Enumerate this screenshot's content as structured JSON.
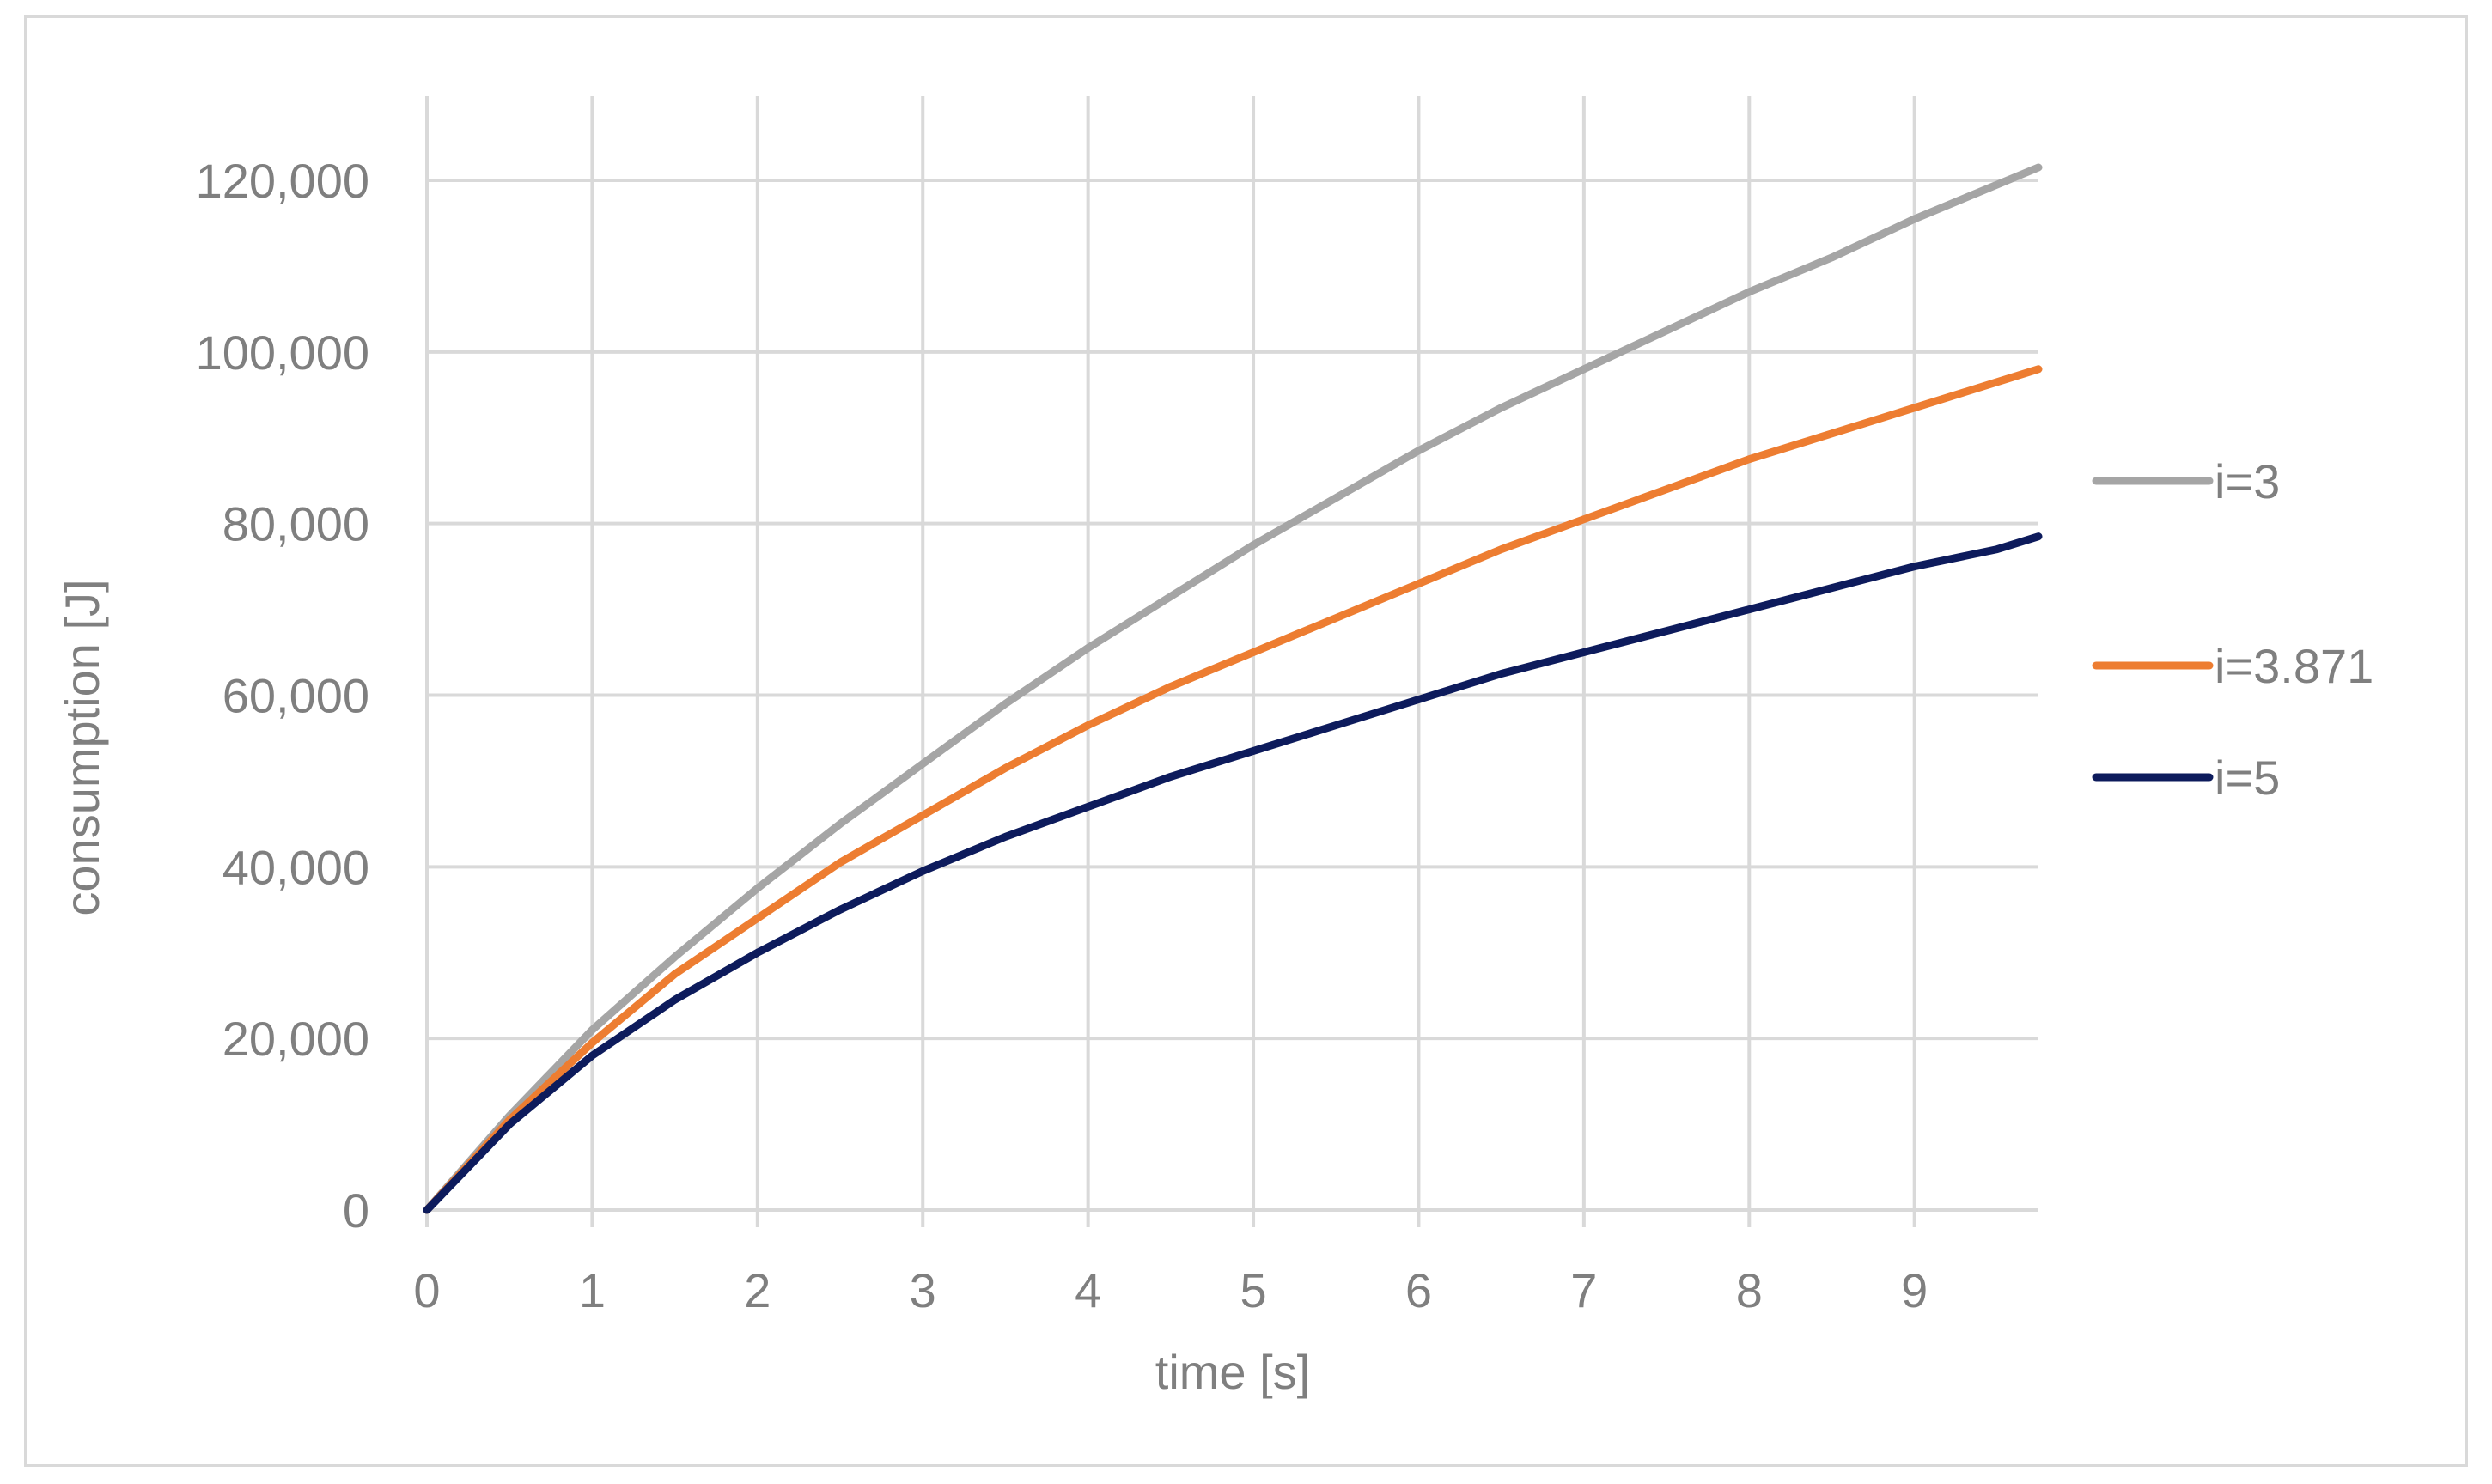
{
  "chart_data": {
    "type": "line",
    "title": "",
    "xlabel": "time [s]",
    "ylabel": "consumption [J]",
    "xlim": [
      0,
      9.75
    ],
    "ylim": [
      0,
      120000
    ],
    "x_ticks": [
      0,
      1,
      2,
      3,
      4,
      5,
      6,
      7,
      8,
      9
    ],
    "x_tick_labels": [
      "0",
      "1",
      "2",
      "3",
      "4",
      "5",
      "6",
      "7",
      "8",
      "9"
    ],
    "y_ticks": [
      0,
      20000,
      40000,
      60000,
      80000,
      100000,
      120000
    ],
    "y_tick_labels": [
      "0",
      "20,000",
      "40,000",
      "60,000",
      "80,000",
      "100,000",
      "120,000"
    ],
    "grid": true,
    "legend_position": "right",
    "series": [
      {
        "name": "i=3",
        "color": "#a5a5a5",
        "x": [
          0,
          0.5,
          1,
          1.5,
          2,
          2.5,
          3,
          3.5,
          4,
          4.5,
          5,
          5.5,
          6,
          6.5,
          7,
          7.5,
          8,
          8.5,
          9,
          9.5,
          9.75
        ],
        "y": [
          0,
          11000,
          21000,
          29500,
          37500,
          45000,
          52000,
          59000,
          65500,
          71500,
          77500,
          83000,
          88500,
          93500,
          98000,
          102500,
          107000,
          111000,
          115500,
          119500,
          121500
        ]
      },
      {
        "name": "i=3.871",
        "color": "#ed7d31",
        "x": [
          0,
          0.5,
          1,
          1.5,
          2,
          2.5,
          3,
          3.5,
          4,
          4.5,
          5,
          5.5,
          6,
          6.5,
          7,
          7.5,
          8,
          8.5,
          9,
          9.5,
          9.75
        ],
        "y": [
          0,
          10500,
          19500,
          27500,
          34000,
          40500,
          46000,
          51500,
          56500,
          61000,
          65000,
          69000,
          73000,
          77000,
          80500,
          84000,
          87500,
          90500,
          93500,
          96500,
          98000
        ]
      },
      {
        "name": "i=5",
        "color": "#0d1b5c",
        "x": [
          0,
          0.5,
          1,
          1.5,
          2,
          2.5,
          3,
          3.5,
          4,
          4.5,
          5,
          5.5,
          6,
          6.5,
          7,
          7.5,
          8,
          8.5,
          9,
          9.5,
          9.75
        ],
        "y": [
          0,
          10000,
          18000,
          24500,
          30000,
          35000,
          39500,
          43500,
          47000,
          50500,
          53500,
          56500,
          59500,
          62500,
          65000,
          67500,
          70000,
          72500,
          75000,
          77000,
          78500
        ]
      }
    ]
  }
}
